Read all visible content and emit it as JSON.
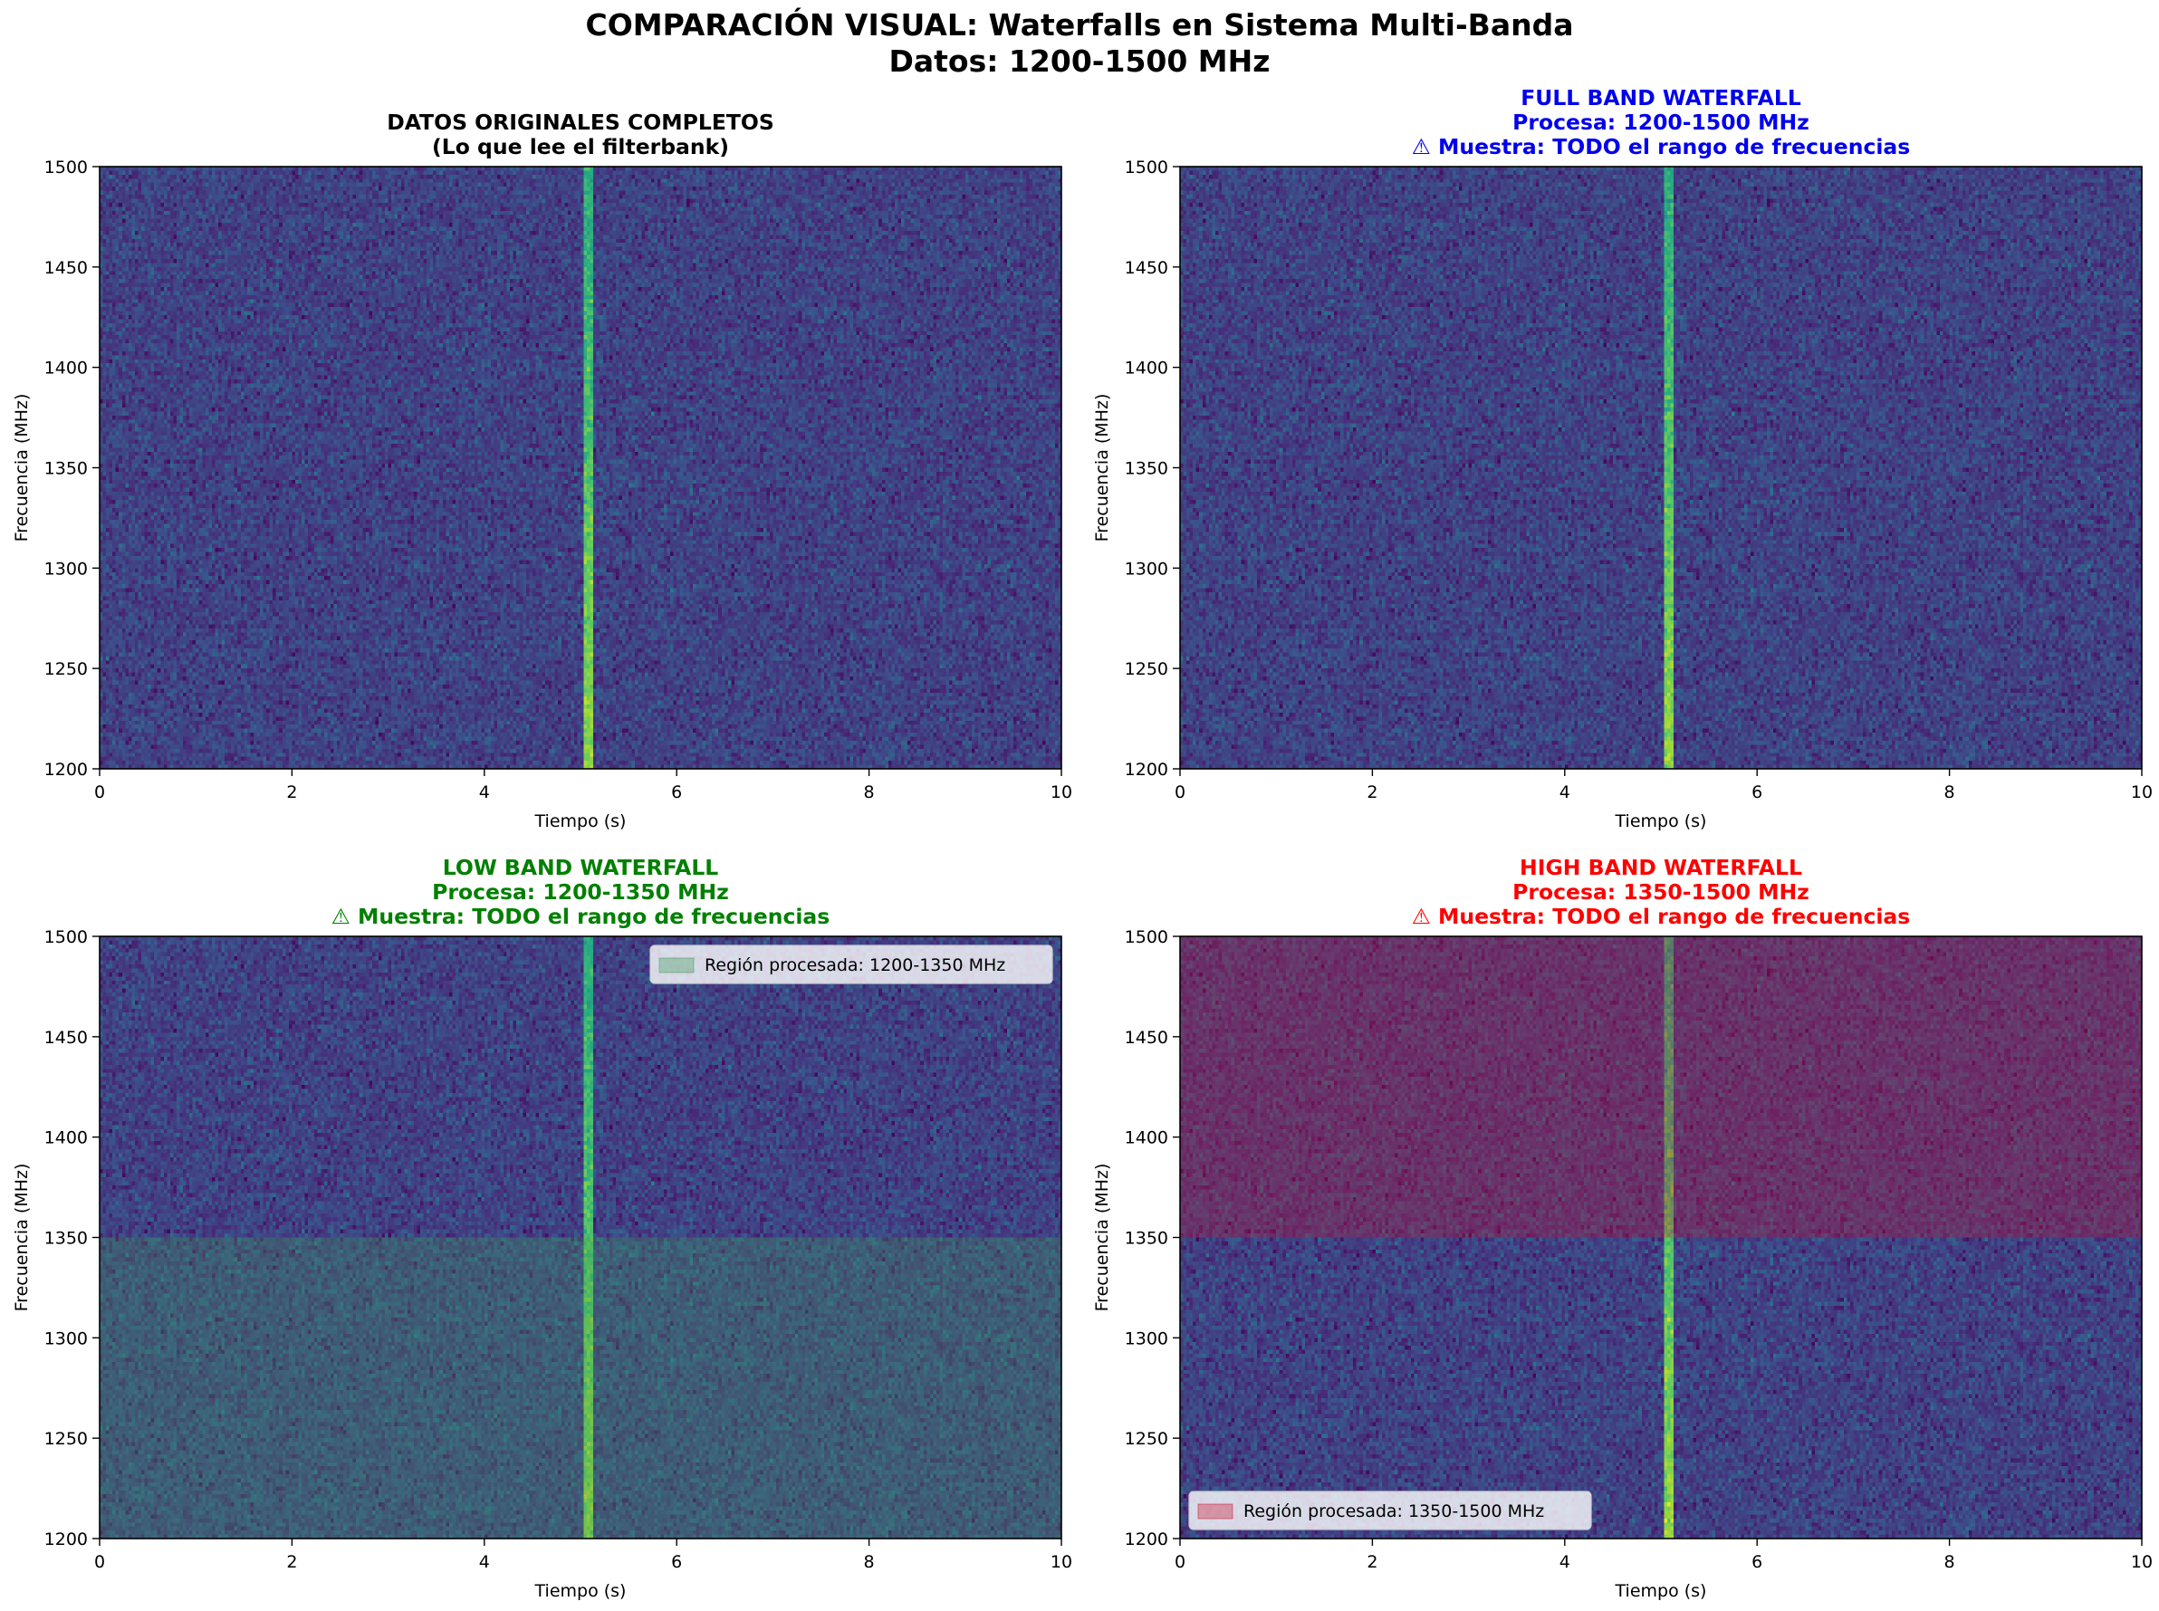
{
  "figure": {
    "title_line1": "COMPARACIÓN VISUAL: Waterfalls en Sistema Multi-Banda",
    "title_line2": "Datos: 1200-1500 MHz"
  },
  "chart_data": [
    {
      "type": "heatmap",
      "title_lines": [
        "DATOS ORIGINALES COMPLETOS",
        "(Lo que lee el filterbank)"
      ],
      "title_color": "#000000",
      "xlabel": "Tiempo (s)",
      "ylabel": "Frecuencia (MHz)",
      "xlim": [
        0,
        10
      ],
      "ylim": [
        1200,
        1500
      ],
      "xticks": [
        0,
        2,
        4,
        6,
        8,
        10
      ],
      "yticks": [
        1200,
        1250,
        1300,
        1350,
        1400,
        1450,
        1500
      ],
      "colormap": "viridis",
      "signal_time_s": 5.07,
      "highlight": null,
      "legend": null
    },
    {
      "type": "heatmap",
      "title_lines": [
        "FULL BAND WATERFALL",
        "Procesa: 1200-1500 MHz",
        "⚠ Muestra: TODO el rango de frecuencias"
      ],
      "title_color": "#0000ee",
      "xlabel": "Tiempo (s)",
      "ylabel": "Frecuencia (MHz)",
      "xlim": [
        0,
        10
      ],
      "ylim": [
        1200,
        1500
      ],
      "xticks": [
        0,
        2,
        4,
        6,
        8,
        10
      ],
      "yticks": [
        1200,
        1250,
        1300,
        1350,
        1400,
        1450,
        1500
      ],
      "colormap": "viridis",
      "signal_time_s": 5.07,
      "highlight": null,
      "legend": null
    },
    {
      "type": "heatmap",
      "title_lines": [
        "LOW BAND WATERFALL",
        "Procesa: 1200-1350 MHz",
        "⚠ Muestra: TODO el rango de frecuencias"
      ],
      "title_color": "#008000",
      "xlabel": "Tiempo (s)",
      "ylabel": "Frecuencia (MHz)",
      "xlim": [
        0,
        10
      ],
      "ylim": [
        1200,
        1500
      ],
      "xticks": [
        0,
        2,
        4,
        6,
        8,
        10
      ],
      "yticks": [
        1200,
        1250,
        1300,
        1350,
        1400,
        1450,
        1500
      ],
      "colormap": "viridis",
      "signal_time_s": 5.07,
      "highlight": {
        "from": 1200,
        "to": 1350,
        "color": "#3a9a56",
        "alpha": 0.3
      },
      "legend": {
        "label": "Región procesada: 1200-1350 MHz",
        "position": "upper-right"
      }
    },
    {
      "type": "heatmap",
      "title_lines": [
        "HIGH BAND WATERFALL",
        "Procesa: 1350-1500 MHz",
        "⚠ Muestra: TODO el rango de frecuencias"
      ],
      "title_color": "#ff0000",
      "xlabel": "Tiempo (s)",
      "ylabel": "Frecuencia (MHz)",
      "xlim": [
        0,
        10
      ],
      "ylim": [
        1200,
        1500
      ],
      "xticks": [
        0,
        2,
        4,
        6,
        8,
        10
      ],
      "yticks": [
        1200,
        1250,
        1300,
        1350,
        1400,
        1450,
        1500
      ],
      "colormap": "viridis",
      "signal_time_s": 5.07,
      "highlight": {
        "from": 1350,
        "to": 1500,
        "color": "#c8102e",
        "alpha": 0.3
      },
      "legend": {
        "label": "Región procesada: 1350-1500 MHz",
        "position": "lower-left"
      }
    }
  ]
}
